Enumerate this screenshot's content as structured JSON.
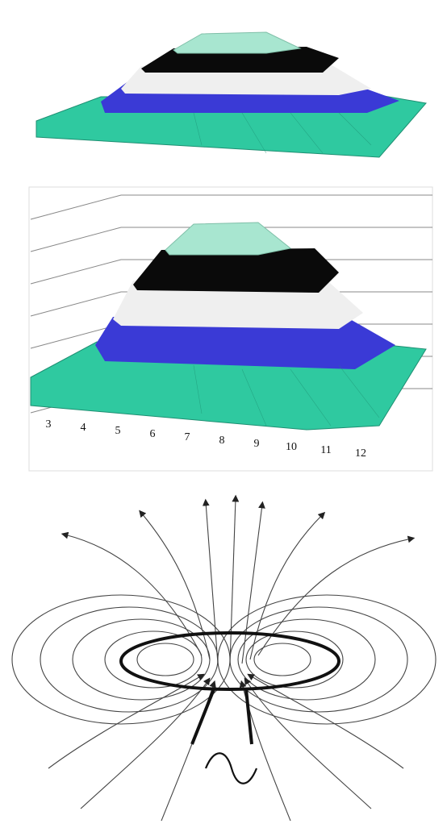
{
  "figures": {
    "top": {
      "kind": "3d-surface-view"
    },
    "middle": {
      "kind": "3d-surface-with-axis"
    },
    "bottom": {
      "kind": "magnetic-field-loop-coil"
    }
  },
  "x_axis_ticks": [
    "3",
    "4",
    "5",
    "6",
    "7",
    "8",
    "9",
    "10",
    "11",
    "12"
  ],
  "colors": {
    "base": "#2fc9a0",
    "blue": "#3a3ad6",
    "white": "#f2f2f2",
    "black": "#0a0a0a",
    "top": "#a8e6d0",
    "lines": "#333333"
  },
  "field_lines": {
    "vertical_up": 3,
    "left_loops": 6,
    "right_loops": 6,
    "bottom_sources": 4
  }
}
